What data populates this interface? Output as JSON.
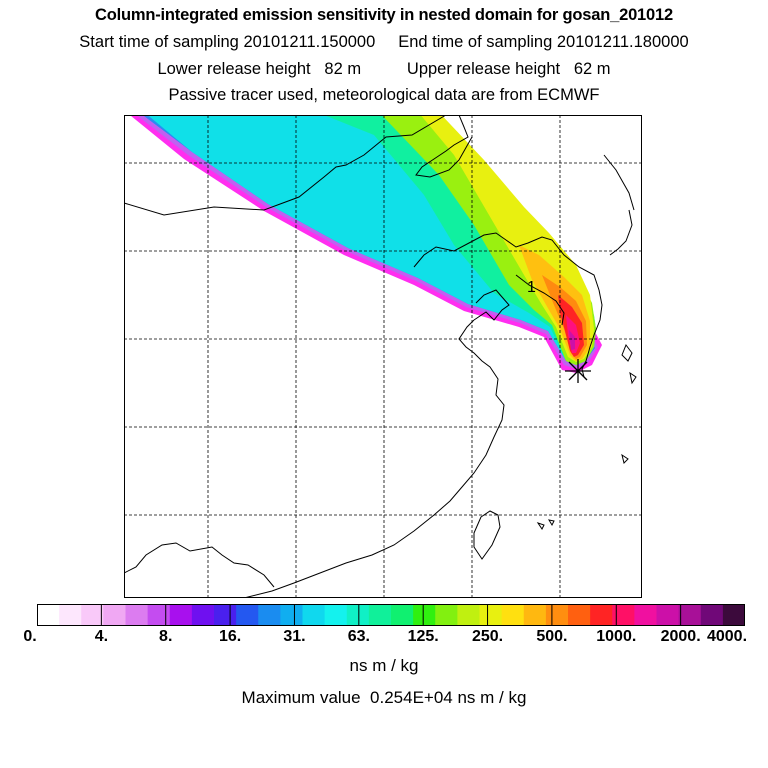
{
  "header": {
    "title": "Column-integrated emission sensitivity in nested domain for gosan_201012",
    "line2": "Start time of sampling 20101211.150000     End time of sampling 20101211.180000",
    "line3": "Lower release height   82 m          Upper release height   62 m",
    "line4": "Passive tracer used, meteorological data are from ECMWF"
  },
  "map": {
    "plume_label": "1",
    "receptor_marker": "asterisk-marker"
  },
  "colorbar": {
    "colors": [
      "#ffffff",
      "#fde7fd",
      "#f9c9f9",
      "#f0a8f3",
      "#dc7cf0",
      "#c44cf0",
      "#a810ee",
      "#6f10f0",
      "#4a20ee",
      "#2458f0",
      "#1a8cf0",
      "#10aef0",
      "#10d8ee",
      "#14f2ee",
      "#10f0c6",
      "#10f09a",
      "#10f070",
      "#30f010",
      "#82f010",
      "#c0f010",
      "#e8f010",
      "#ffe010",
      "#ffb810",
      "#ff8e10",
      "#ff6010",
      "#ff2424",
      "#ff1066",
      "#f010a0",
      "#cc10a8",
      "#a81098",
      "#700878",
      "#3c0a3c"
    ],
    "tick_labels": [
      "0.",
      "4.",
      "8.",
      "16.",
      "31.",
      "63.",
      "125.",
      "250.",
      "500.",
      "1000.",
      "2000.",
      "4000."
    ]
  },
  "unit_label": "ns m / kg",
  "max_value_text": "Maximum value  0.254E+04 ns m / kg"
}
